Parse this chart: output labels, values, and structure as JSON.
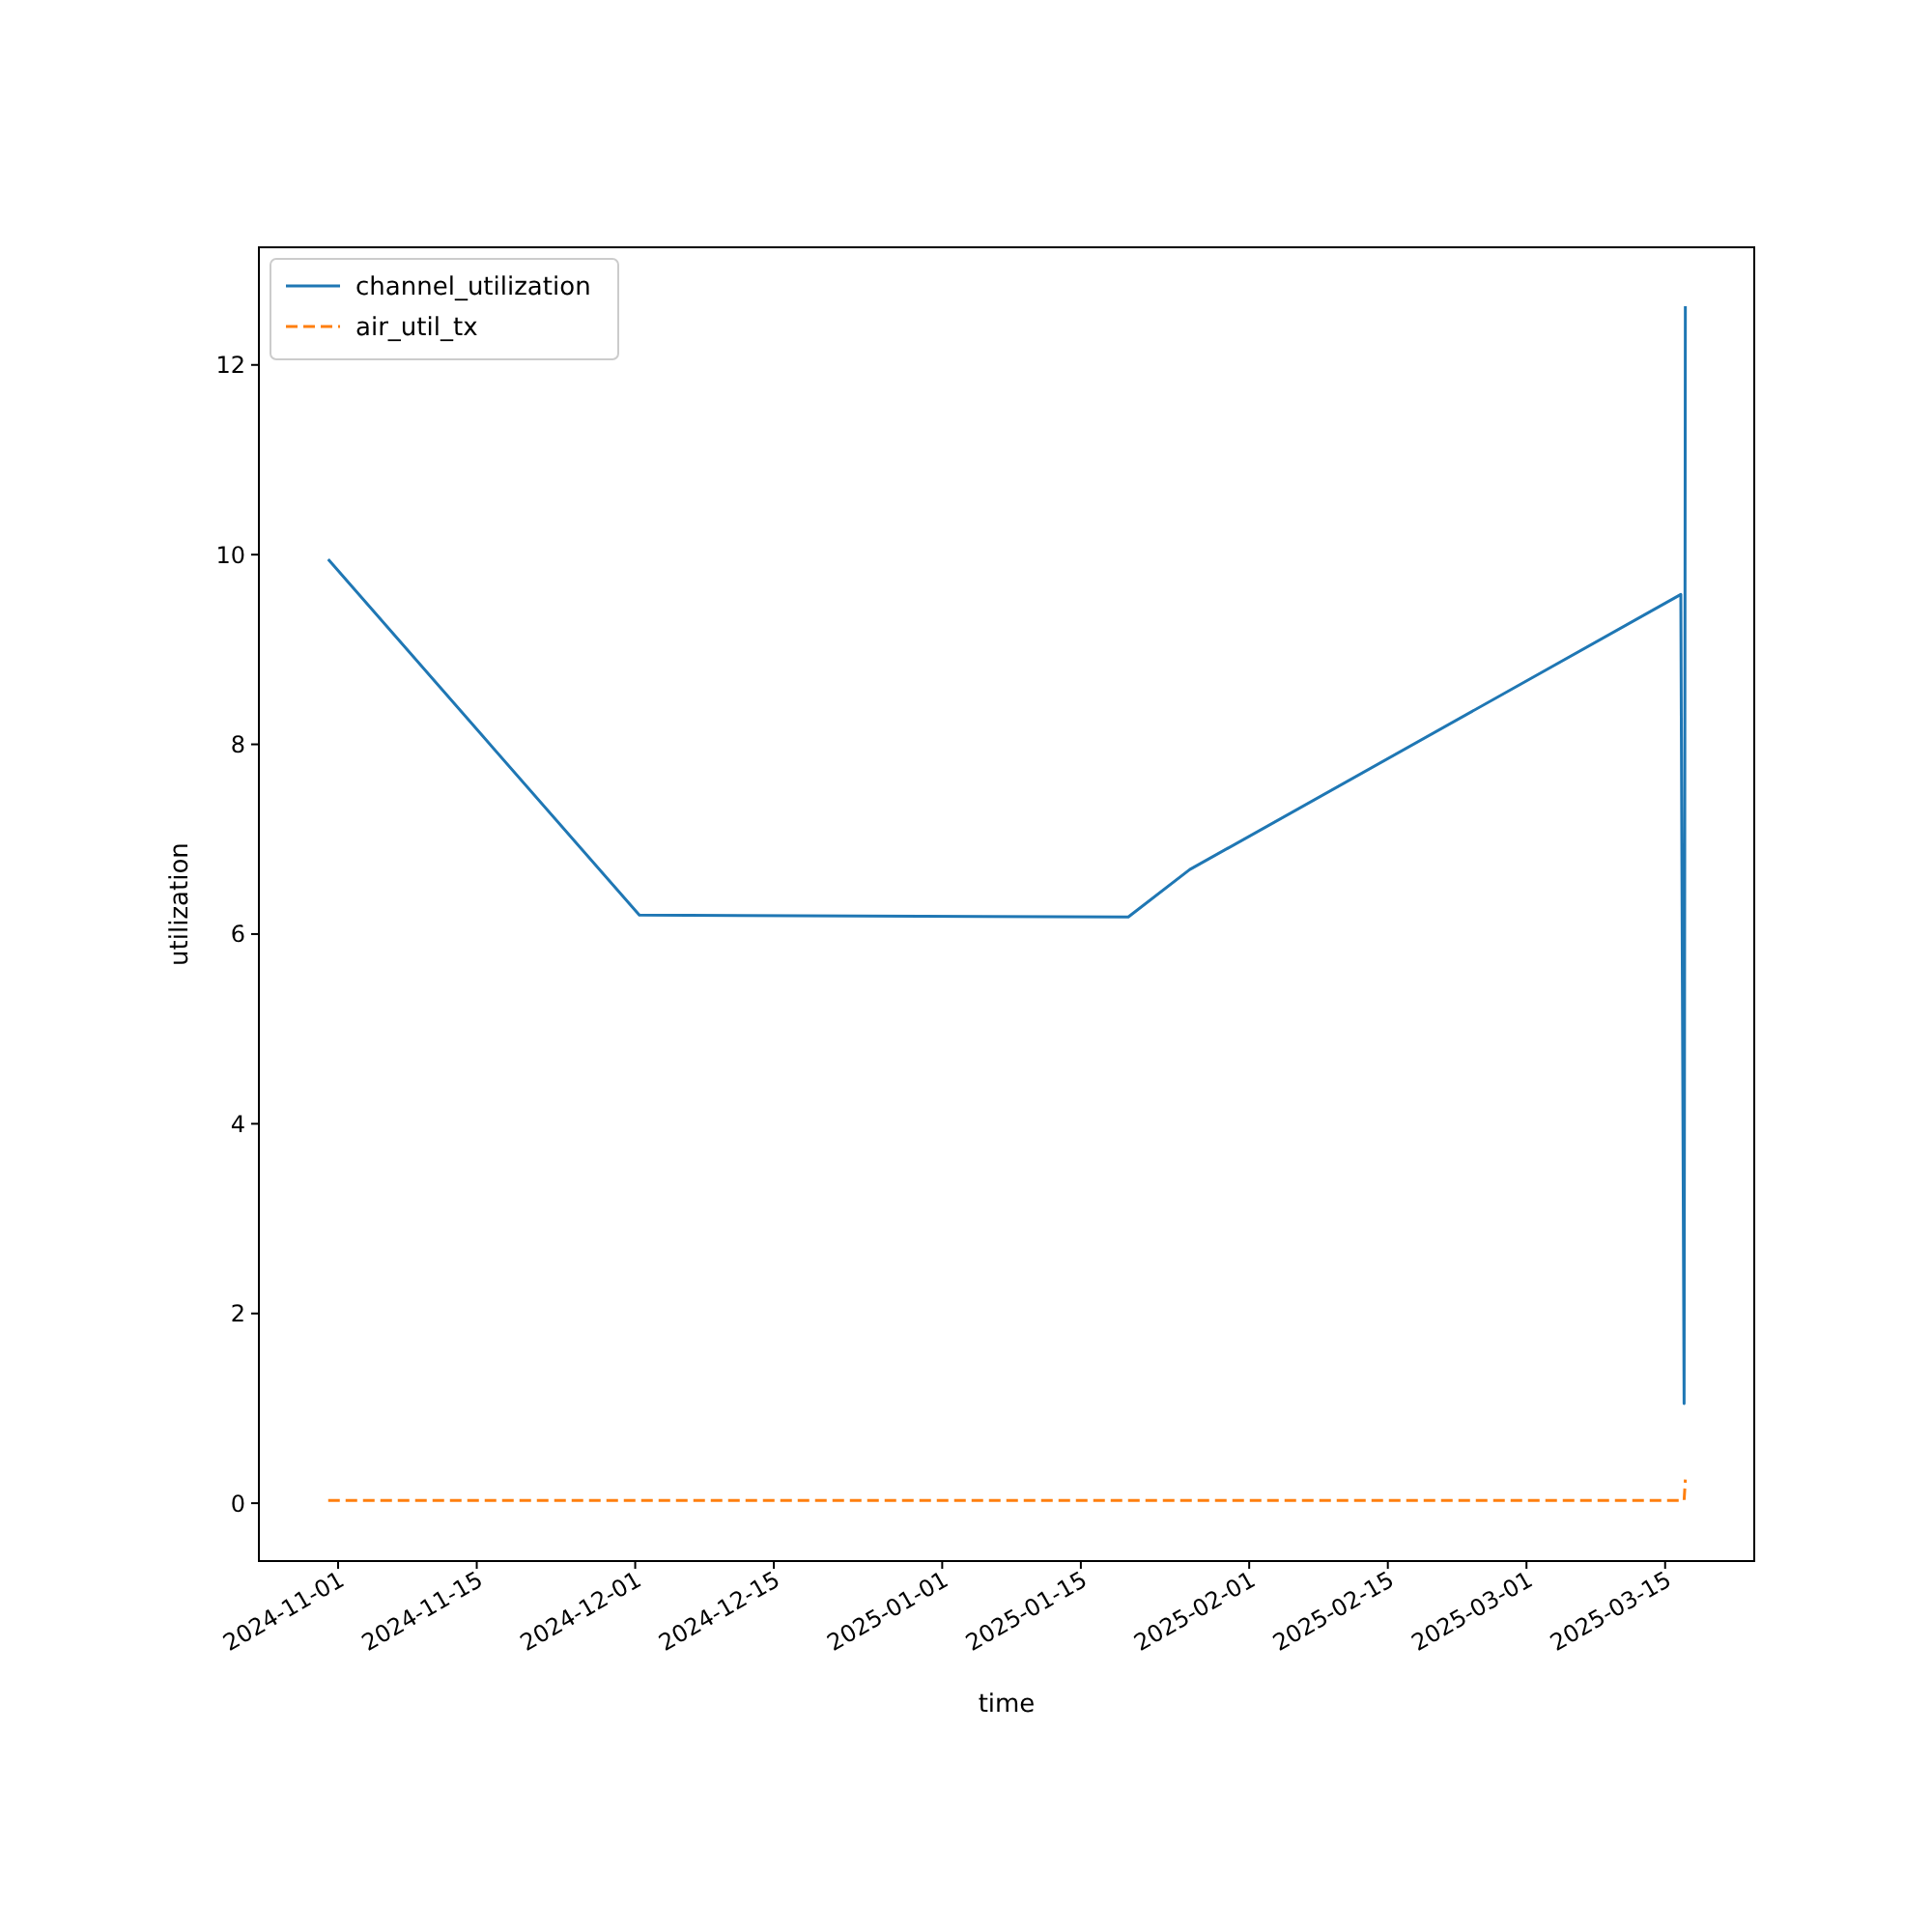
{
  "chart_data": {
    "type": "line",
    "xlabel": "time",
    "ylabel": "utilization",
    "x": [
      "2024-10-31",
      "2024-12-01T10:00",
      "2025-01-19T19:00",
      "2025-01-26",
      "2025-03-16T14:00",
      "2025-03-16T22:00",
      "2025-03-17T01:00"
    ],
    "series": [
      {
        "name": "channel_utilization",
        "color": "#1f77b4",
        "line_style": "solid",
        "values": [
          9.95,
          6.2,
          6.18,
          6.68,
          9.58,
          1.05,
          12.62
        ]
      },
      {
        "name": "air_util_tx",
        "color": "#ff7f0e",
        "line_style": "dashed",
        "values": [
          0.03,
          0.03,
          0.03,
          0.03,
          0.03,
          0.03,
          0.25
        ]
      }
    ],
    "xlim": [
      "2024-10-24",
      "2025-03-24"
    ],
    "xticks": [
      {
        "value": "2024-11-01",
        "label": "2024-11-01"
      },
      {
        "value": "2024-11-15",
        "label": "2024-11-15"
      },
      {
        "value": "2024-12-01",
        "label": "2024-12-01"
      },
      {
        "value": "2024-12-15",
        "label": "2024-12-15"
      },
      {
        "value": "2025-01-01",
        "label": "2025-01-01"
      },
      {
        "value": "2025-01-15",
        "label": "2025-01-15"
      },
      {
        "value": "2025-02-01",
        "label": "2025-02-01"
      },
      {
        "value": "2025-02-15",
        "label": "2025-02-15"
      },
      {
        "value": "2025-03-01",
        "label": "2025-03-01"
      },
      {
        "value": "2025-03-15",
        "label": "2025-03-15"
      }
    ],
    "ylim": [
      -0.61,
      13.24
    ],
    "yticks": [
      0,
      2,
      4,
      6,
      8,
      10,
      12
    ],
    "grid": false,
    "legend": "top left"
  }
}
